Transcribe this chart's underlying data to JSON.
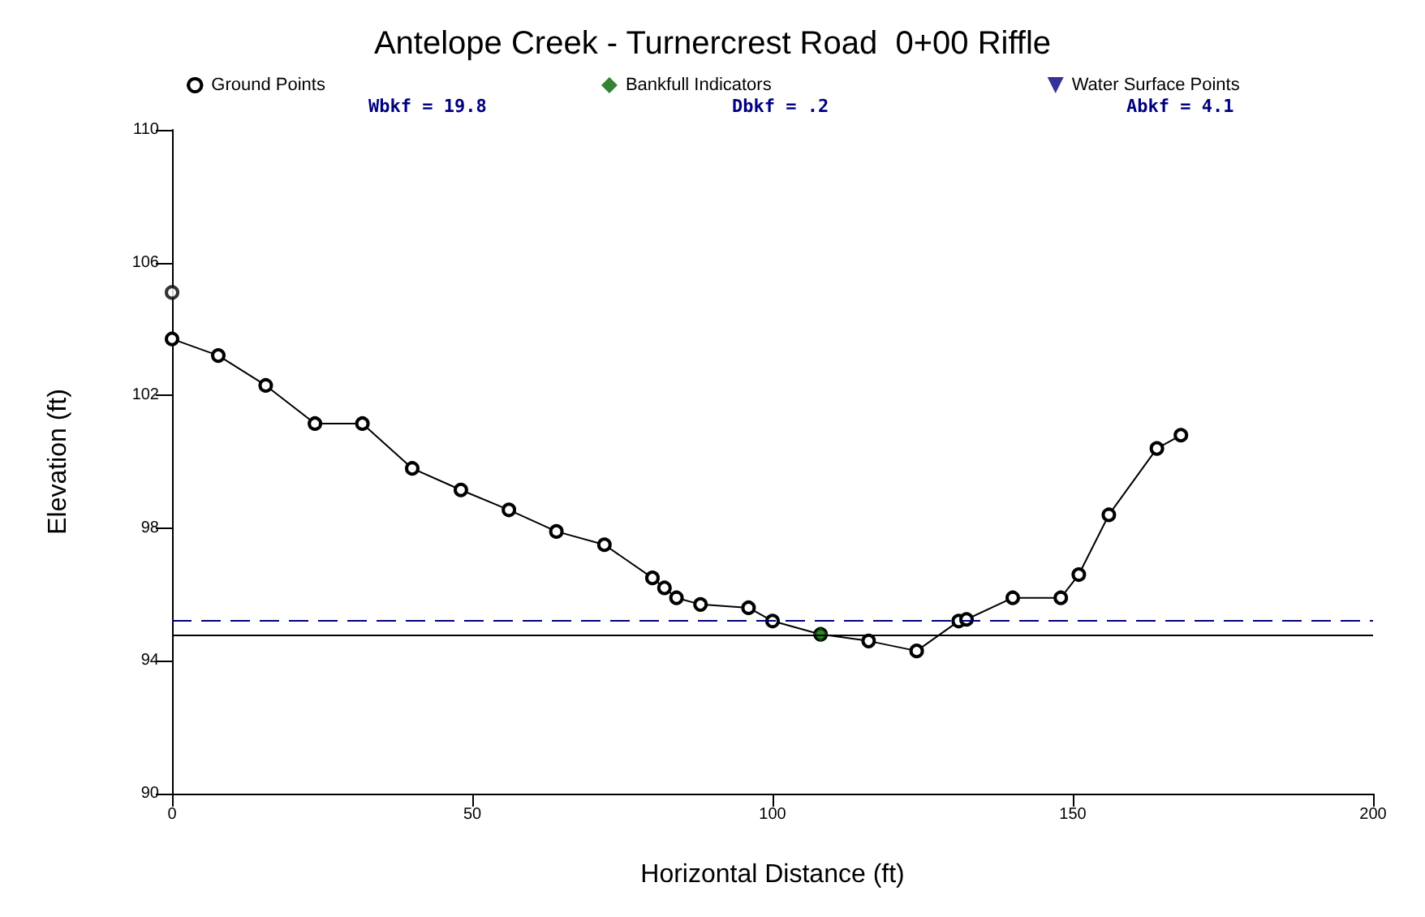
{
  "chart_data": {
    "type": "line",
    "title": "Antelope Creek - Turnercrest Road  0+00 Riffle",
    "xlabel": "Horizontal Distance (ft)",
    "ylabel": "Elevation (ft)",
    "annotations": [
      "Wbkf = 19.8",
      "Dbkf = .2",
      "Abkf = 4.1"
    ],
    "xlim": [
      0,
      200
    ],
    "xticks": [
      0,
      50,
      100,
      150,
      200
    ],
    "ylim": [
      90,
      110
    ],
    "yticks": [
      90,
      94,
      98,
      102,
      106,
      110
    ],
    "grid": false,
    "legend": "top",
    "series": [
      {
        "type": "scatter",
        "marker": "circle",
        "color": "#000000",
        "x": [
          0
        ],
        "values": [
          105.1
        ]
      },
      {
        "name": "Ground Points",
        "marker": "circle",
        "color": "#000000",
        "x": [
          0,
          7.7,
          15.6,
          23.8,
          31.7,
          40,
          48.1,
          56.1,
          64,
          72,
          80,
          82,
          84,
          88,
          96,
          100,
          108,
          116,
          124,
          131,
          132.3,
          140,
          148,
          151,
          156,
          164,
          168
        ],
        "values": [
          103.7,
          103.2,
          102.3,
          101.15,
          101.15,
          99.8,
          99.15,
          98.55,
          97.9,
          97.5,
          96.5,
          96.2,
          95.9,
          95.7,
          95.6,
          95.2,
          94.8,
          94.6,
          94.3,
          95.2,
          95.25,
          95.9,
          95.9,
          96.6,
          98.4,
          100.4,
          100.8
        ]
      },
      {
        "name": "Bankfull Indicators",
        "type": "scatter",
        "marker": "diamond",
        "color": "#006400",
        "x": [
          108
        ],
        "values": [
          94.8
        ]
      },
      {
        "name": "Water Surface Points",
        "type": "scatter",
        "marker": "triangle",
        "color": "#000080"
      }
    ],
    "ref_lines": [
      {
        "axis": "y",
        "value": 95.2,
        "color": "#000080",
        "line_style": "dashed"
      },
      {
        "axis": "y",
        "value": 94.8,
        "color": "#000000",
        "line_style": "solid"
      }
    ]
  }
}
